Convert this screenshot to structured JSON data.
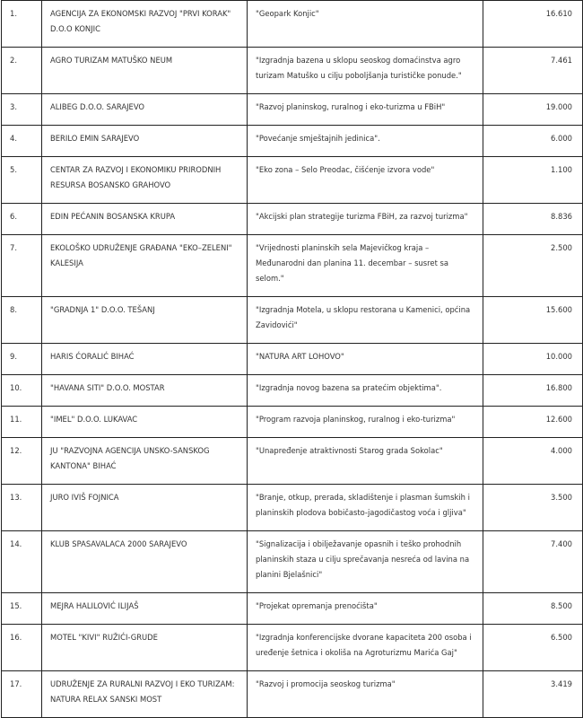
{
  "rows": [
    {
      "no": "1.",
      "org": "AGENCIJA ZA EKONOMSKI RAZVOJ \"PRVI KORAK\" D.O.O KONJIC",
      "project": "\"Geopark Konjic\"",
      "amount": "16.610"
    },
    {
      "no": "2.",
      "org": "AGRO TURIZAM MATUŠKO NEUM",
      "project": "\"Izgradnja bazena u sklopu seoskog domaćinstva agro turizam Matuško u cilju poboljšanja turističke ponude.\"",
      "amount": "7.461"
    },
    {
      "no": "3.",
      "org": "ALIBEG D.O.O. SARAJEVO",
      "project": "\"Razvoj planinskog, ruralnog i eko-turizma u FBiH\"",
      "amount": "19.000"
    },
    {
      "no": "4.",
      "org": "BERILO EMIN SARAJEVO",
      "project": "\"Povećanje smještajnih jedinica\".",
      "amount": "6.000"
    },
    {
      "no": "5.",
      "org": "CENTAR ZA RAZVOJ I EKONOMIKU PRIRODNIH RESURSA BOSANSKO GRAHOVO",
      "project": "\"Eko zona – Selo Preodac, čišćenje izvora vode\"",
      "amount": "1.100"
    },
    {
      "no": "6.",
      "org": "EDIN PEĆANIN BOSANSKA KRUPA",
      "project": "\"Akcijski plan strategije turizma FBiH, za razvoj turizma\"",
      "amount": "8.836"
    },
    {
      "no": "7.",
      "org": "EKOLOŠKO UDRUŽENJE GRAĐANA \"EKO–ZELENI\" KALESIJA",
      "project": "\"Vrijednosti planinskih sela Majevičkog kraja – Međunarodni dan planina 11. decembar – susret sa selom.\"",
      "amount": "2.500"
    },
    {
      "no": "8.",
      "org": "\"GRADNJA 1\" D.O.O. TEŠANJ",
      "project": "\"Izgradnja Motela, u sklopu restorana u Kamenici, općina Zavidovići\"",
      "amount": "15.600"
    },
    {
      "no": "9.",
      "org": "HARIS ĆORALIĆ BIHAĆ",
      "project": "\"NATURA ART LOHOVO\"",
      "amount": "10.000"
    },
    {
      "no": "10.",
      "org": "\"HAVANA SITI\" D.O.O. MOSTAR",
      "project": "\"Izgradnja novog bazena sa pratećim objektima\".",
      "amount": "16.800"
    },
    {
      "no": "11.",
      "org": "\"IMEL\" D.O.O. LUKAVAC",
      "project": "\"Program razvoja planinskog, ruralnog i eko-turizma\"",
      "amount": "12.600"
    },
    {
      "no": "12.",
      "org": "JU \"RAZVOJNA AGENCIJA UNSKO-SANSKOG KANTONA\" BIHAĆ",
      "project": "\"Unapređenje atraktivnosti Starog grada Sokolac\"",
      "amount": "4.000"
    },
    {
      "no": "13.",
      "org": "JURO IVIŠ FOJNICA",
      "project": "\"Branje, otkup, prerada, skladištenje i plasman šumskih i planinskih plodova bobičasto-jagodičastog voća i gljiva\"",
      "amount": "3.500"
    },
    {
      "no": "14.",
      "org": "KLUB SPASAVALACA 2000 SARAJEVO",
      "project": "\"Signalizacija i obilježavanje opasnih i teško prohodnih planinskih staza u cilju sprečavanja nesreća od lavina na planini Bjelašnici\"",
      "amount": "7.400"
    },
    {
      "no": "15.",
      "org": "MEJRA HALILOVIĆ ILIJAŠ",
      "project": "\"Projekat opremanja prenoćišta\"",
      "amount": "8.500"
    },
    {
      "no": "16.",
      "org": "MOTEL \"KIVI\" RUŽIĆI-GRUDE",
      "project": "\"Izgradnja konferencijske dvorane kapaciteta 200 osoba i uređenje šetnica i okoliša na Agroturizmu Marića Gaj\"",
      "amount": "6.500"
    },
    {
      "no": "17.",
      "org": "UDRUŽENJE ZA RURALNI RAZVOJ I EKO TURIZAM: NATURA RELAX SANSKI MOST",
      "project": "\"Razvoj i promocija seoskog turizma\"",
      "amount": "3.419"
    }
  ]
}
